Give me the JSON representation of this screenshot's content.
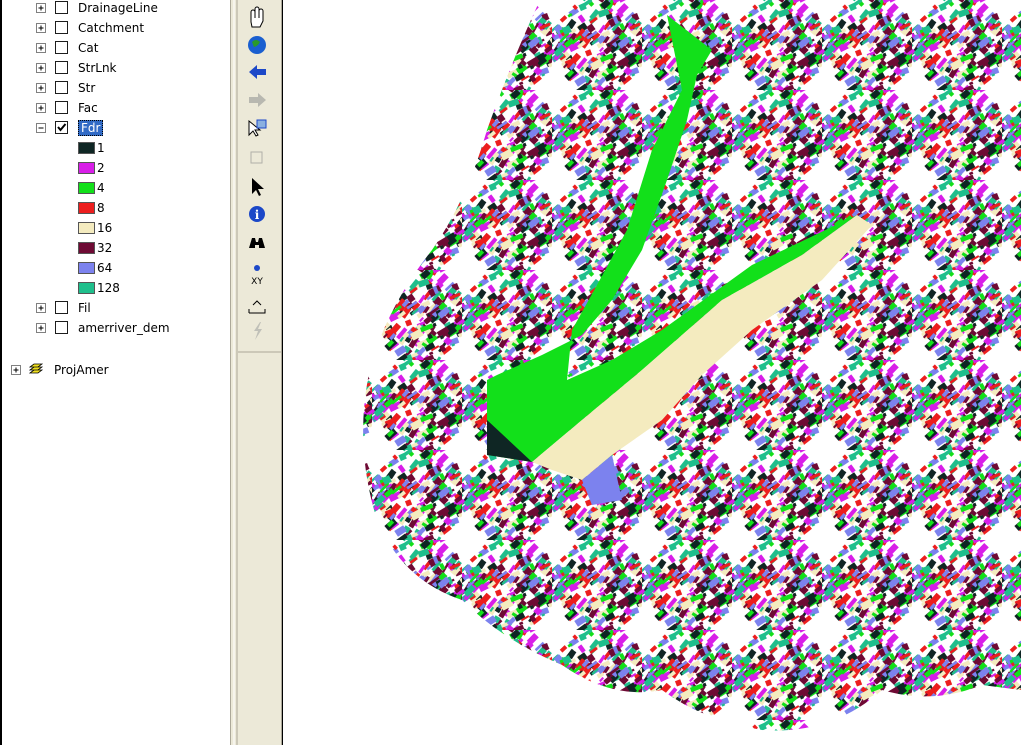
{
  "toc": {
    "layers_top": [
      "DrainageLine",
      "Catchment",
      "Cat",
      "StrLnk",
      "Str",
      "Fac"
    ],
    "active_layer": {
      "name": "Fdr",
      "classes": [
        {
          "label": "1",
          "color": "#0f2624"
        },
        {
          "label": "2",
          "color": "#d81ee8"
        },
        {
          "label": "4",
          "color": "#12e01a"
        },
        {
          "label": "8",
          "color": "#ec1e1e"
        },
        {
          "label": "16",
          "color": "#f4ebbf"
        },
        {
          "label": "32",
          "color": "#6e0a34"
        },
        {
          "label": "64",
          "color": "#7c82ee"
        },
        {
          "label": "128",
          "color": "#1fbf8c"
        }
      ]
    },
    "layers_bottom": [
      "Fil",
      "amerriver_dem"
    ],
    "group": "ProjAmer"
  }
}
